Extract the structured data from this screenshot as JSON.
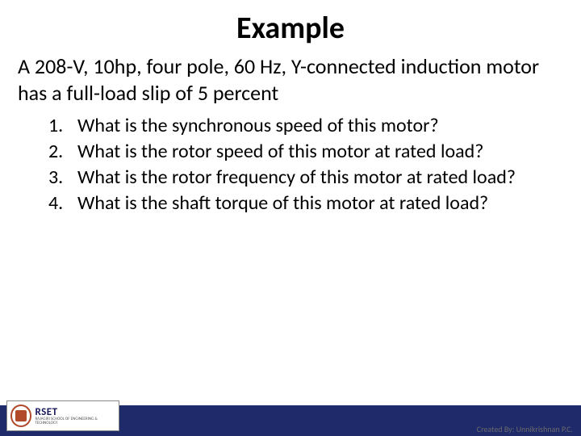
{
  "title": "Example",
  "intro": "A 208-V, 10hp, four pole, 60 Hz, Y-connected induction motor has a full-load slip of 5 percent",
  "questions": {
    "items": [
      {
        "num": "1.",
        "text": "What is the synchronous speed of this motor?"
      },
      {
        "num": "2.",
        "text": "What is the rotor speed of this motor at rated load?"
      },
      {
        "num": "3.",
        "text": "What is the rotor frequency of this motor at rated load?"
      },
      {
        "num": "4.",
        "text": "What is the shaft torque of this motor at rated load?"
      }
    ]
  },
  "footer": {
    "logo_main": "RSET",
    "logo_sub": "RAJAGIRI SCHOOL OF ENGINEERING & TECHNOLOGY",
    "credit": "Created By: Unnikrishnan P.C.",
    "blue_color": "#1f2a6b",
    "logo_border_color": "#b14a2a"
  },
  "colors": {
    "text": "#000000",
    "background": "#ffffff"
  },
  "fonts": {
    "title_size": 38,
    "title_weight": 700,
    "body_size": 26,
    "list_size": 24
  }
}
